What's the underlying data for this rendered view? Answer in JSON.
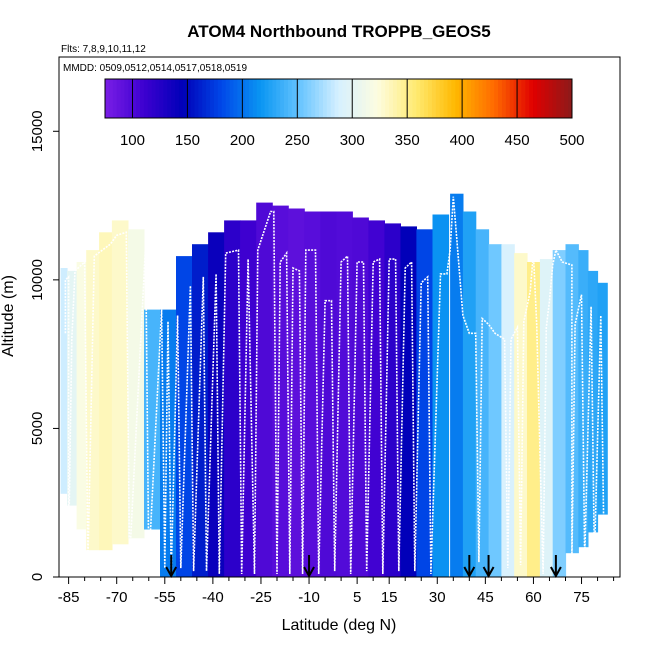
{
  "chart_data": {
    "type": "heatmap",
    "title": "ATOM4 Northbound TROPPB_GEOS5",
    "subtitle_flights": "Flts: 7,8,9,10,11,12",
    "subtitle_mmdd": "MMDD: 0509,0512,0514,0517,0518,0519",
    "xlabel": "Latitude (deg N)",
    "ylabel": "Altitude (m)",
    "xlim": [
      -88,
      87
    ],
    "ylim": [
      0,
      17500
    ],
    "x_ticks": [
      -85,
      -70,
      -55,
      -40,
      -25,
      -10,
      5,
      15,
      30,
      45,
      60,
      75
    ],
    "x_tick_labels": [
      "-85",
      "-70",
      "-55",
      "-40",
      "-25",
      "-10",
      "5",
      "15",
      "30",
      "45",
      "60",
      "75"
    ],
    "y_ticks": [
      0,
      5000,
      10000,
      15000
    ],
    "y_tick_labels": [
      "0",
      "5000",
      "10000",
      "15000"
    ],
    "colorbar": {
      "min": 75,
      "max": 500,
      "ticks": [
        100,
        150,
        200,
        250,
        300,
        350,
        400,
        450,
        500
      ],
      "tick_labels": [
        "100",
        "150",
        "200",
        "250",
        "300",
        "350",
        "400",
        "450",
        "500"
      ],
      "colors": [
        "#7a1ee6",
        "#3d00d0",
        "#0000b8",
        "#0048e8",
        "#0a96f2",
        "#66c4ff",
        "#d6f0ff",
        "#fdfde0",
        "#ffea70",
        "#ffb800",
        "#ff6a00",
        "#e00000",
        "#8c1a1a"
      ]
    },
    "arrow_latitudes": [
      -53,
      -10,
      40,
      46,
      67
    ],
    "columns": [
      {
        "lat": -86.5,
        "w": 2,
        "bottom": 2800,
        "top": 10400,
        "value": 285
      },
      {
        "lat": -84,
        "w": 3,
        "bottom": 2400,
        "top": 10300,
        "value": 300
      },
      {
        "lat": -81,
        "w": 3,
        "bottom": 1600,
        "top": 10600,
        "value": 320
      },
      {
        "lat": -77.5,
        "w": 4,
        "bottom": 900,
        "top": 11000,
        "value": 330
      },
      {
        "lat": -73.5,
        "w": 4,
        "bottom": 900,
        "top": 11600,
        "value": 335
      },
      {
        "lat": -69,
        "w": 5,
        "bottom": 1100,
        "top": 12000,
        "value": 330
      },
      {
        "lat": -64,
        "w": 5,
        "bottom": 1300,
        "top": 11700,
        "value": 315
      },
      {
        "lat": -59,
        "w": 5,
        "bottom": 1600,
        "top": 9000,
        "value": 240
      },
      {
        "lat": -54,
        "w": 5,
        "bottom": 0,
        "top": 9000,
        "value": 205
      },
      {
        "lat": -49,
        "w": 5,
        "bottom": 0,
        "top": 10800,
        "value": 180
      },
      {
        "lat": -44,
        "w": 5,
        "bottom": 0,
        "top": 11200,
        "value": 160
      },
      {
        "lat": -39,
        "w": 5,
        "bottom": 0,
        "top": 11600,
        "value": 140
      },
      {
        "lat": -34,
        "w": 5,
        "bottom": 0,
        "top": 12000,
        "value": 120
      },
      {
        "lat": -29,
        "w": 5,
        "bottom": 0,
        "top": 12000,
        "value": 110
      },
      {
        "lat": -24,
        "w": 5,
        "bottom": 0,
        "top": 12600,
        "value": 100
      },
      {
        "lat": -19,
        "w": 5,
        "bottom": 0,
        "top": 12500,
        "value": 95
      },
      {
        "lat": -14,
        "w": 5,
        "bottom": 0,
        "top": 12400,
        "value": 92
      },
      {
        "lat": -9,
        "w": 5,
        "bottom": 0,
        "top": 12300,
        "value": 95
      },
      {
        "lat": -4,
        "w": 5,
        "bottom": 0,
        "top": 12300,
        "value": 100
      },
      {
        "lat": 1,
        "w": 5,
        "bottom": 0,
        "top": 12300,
        "value": 98
      },
      {
        "lat": 6,
        "w": 5,
        "bottom": 0,
        "top": 12100,
        "value": 100
      },
      {
        "lat": 11,
        "w": 5,
        "bottom": 0,
        "top": 12000,
        "value": 108
      },
      {
        "lat": 16,
        "w": 5,
        "bottom": 0,
        "top": 11900,
        "value": 120
      },
      {
        "lat": 21,
        "w": 5,
        "bottom": 0,
        "top": 11800,
        "value": 145
      },
      {
        "lat": 26,
        "w": 5,
        "bottom": 0,
        "top": 11700,
        "value": 180
      },
      {
        "lat": 31,
        "w": 5,
        "bottom": 0,
        "top": 12200,
        "value": 215
      },
      {
        "lat": 36,
        "w": 4,
        "bottom": 0,
        "top": 12900,
        "value": 205
      },
      {
        "lat": 40,
        "w": 4,
        "bottom": 0,
        "top": 12300,
        "value": 225
      },
      {
        "lat": 44,
        "w": 4,
        "bottom": 0,
        "top": 11700,
        "value": 240
      },
      {
        "lat": 48,
        "w": 4,
        "bottom": 0,
        "top": 11200,
        "value": 255
      },
      {
        "lat": 52,
        "w": 4,
        "bottom": 0,
        "top": 11200,
        "value": 290
      },
      {
        "lat": 56,
        "w": 4,
        "bottom": 0,
        "top": 10900,
        "value": 330
      },
      {
        "lat": 60,
        "w": 4,
        "bottom": 0,
        "top": 10600,
        "value": 350
      },
      {
        "lat": 64,
        "w": 4,
        "bottom": 0,
        "top": 10700,
        "value": 295
      },
      {
        "lat": 68,
        "w": 4,
        "bottom": 0,
        "top": 11000,
        "value": 260
      },
      {
        "lat": 72,
        "w": 4,
        "bottom": 800,
        "top": 11200,
        "value": 245
      },
      {
        "lat": 75.5,
        "w": 3,
        "bottom": 1000,
        "top": 11000,
        "value": 235
      },
      {
        "lat": 78.5,
        "w": 3,
        "bottom": 1500,
        "top": 10300,
        "value": 230
      },
      {
        "lat": 81.5,
        "w": 3,
        "bottom": 2100,
        "top": 9900,
        "value": 225
      }
    ],
    "flight_track": [
      [
        -86,
        8200
      ],
      [
        -86,
        10000
      ],
      [
        -85,
        10100
      ],
      [
        -85,
        1000
      ],
      [
        -84,
        8000
      ],
      [
        -83,
        10300
      ],
      [
        -80,
        10600
      ],
      [
        -79,
        500
      ],
      [
        -77,
        10800
      ],
      [
        -72,
        11200
      ],
      [
        -70,
        11500
      ],
      [
        -67,
        11600
      ],
      [
        -66,
        500
      ],
      [
        -61,
        11200
      ],
      [
        -60,
        400
      ],
      [
        -56,
        9000
      ],
      [
        -55,
        300
      ],
      [
        -54,
        8600
      ],
      [
        -53,
        100
      ],
      [
        -51,
        8800
      ],
      [
        -50,
        300
      ],
      [
        -47,
        9800
      ],
      [
        -46,
        200
      ],
      [
        -43,
        10100
      ],
      [
        -42,
        200
      ],
      [
        -39,
        10200
      ],
      [
        -38,
        100
      ],
      [
        -36,
        10900
      ],
      [
        -32,
        11000
      ],
      [
        -31,
        100
      ],
      [
        -29,
        10700
      ],
      [
        -27,
        100
      ],
      [
        -26,
        11000
      ],
      [
        -22,
        12300
      ],
      [
        -21,
        12300
      ],
      [
        -20,
        100
      ],
      [
        -19,
        10600
      ],
      [
        -17,
        10900
      ],
      [
        -16,
        100
      ],
      [
        -15,
        10400
      ],
      [
        -13,
        10300
      ],
      [
        -12,
        100
      ],
      [
        -11,
        11000
      ],
      [
        -8,
        11000
      ],
      [
        -7,
        100
      ],
      [
        -5,
        9300
      ],
      [
        -3,
        9300
      ],
      [
        -2,
        200
      ],
      [
        0,
        10600
      ],
      [
        2,
        10800
      ],
      [
        3,
        100
      ],
      [
        5,
        10600
      ],
      [
        7,
        10600
      ],
      [
        8,
        200
      ],
      [
        10,
        10600
      ],
      [
        12,
        10700
      ],
      [
        13,
        100
      ],
      [
        15,
        10700
      ],
      [
        17,
        10700
      ],
      [
        18,
        200
      ],
      [
        20,
        10400
      ],
      [
        22,
        10600
      ],
      [
        23,
        200
      ],
      [
        25,
        9900
      ],
      [
        27,
        10100
      ],
      [
        28,
        100
      ],
      [
        31,
        10200
      ],
      [
        33,
        10200
      ],
      [
        34,
        11000
      ],
      [
        35,
        12800
      ],
      [
        36,
        11500
      ],
      [
        38,
        8800
      ],
      [
        40,
        8200
      ],
      [
        42,
        8200
      ],
      [
        43,
        500
      ],
      [
        44,
        8700
      ],
      [
        46,
        8500
      ],
      [
        48,
        8200
      ],
      [
        51,
        8000
      ],
      [
        52,
        300
      ],
      [
        53,
        8000
      ],
      [
        55,
        8400
      ],
      [
        56,
        400
      ],
      [
        57,
        8600
      ],
      [
        59,
        9600
      ],
      [
        60,
        10900
      ],
      [
        61,
        8500
      ],
      [
        63,
        100
      ],
      [
        64,
        8400
      ],
      [
        65,
        9300
      ],
      [
        66,
        10500
      ],
      [
        67,
        11000
      ],
      [
        69,
        10600
      ],
      [
        72,
        10500
      ],
      [
        72,
        600
      ],
      [
        73,
        8500
      ],
      [
        75,
        9500
      ],
      [
        76,
        600
      ],
      [
        78,
        9100
      ],
      [
        79,
        600
      ],
      [
        81,
        8800
      ],
      [
        82,
        1000
      ]
    ]
  }
}
